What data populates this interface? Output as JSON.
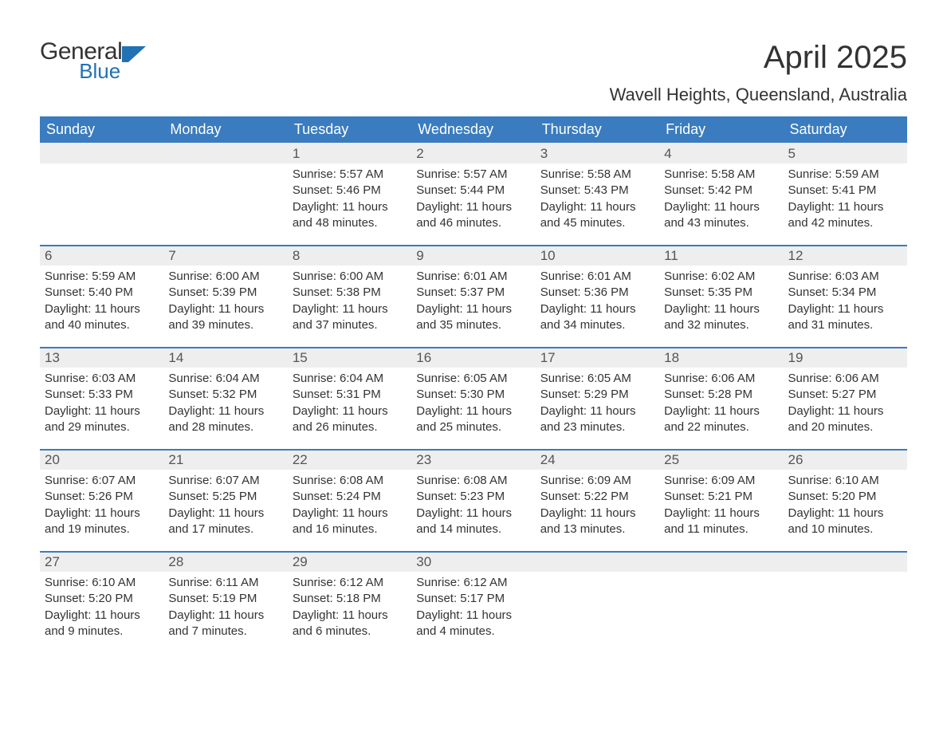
{
  "logo": {
    "word1": "General",
    "word2": "Blue",
    "color_dark": "#333333",
    "color_blue": "#2171b5",
    "shape_color": "#2171b5"
  },
  "title": "April 2025",
  "subtitle": "Wavell Heights, Queensland, Australia",
  "colors": {
    "header_bg": "#3a7cbf",
    "header_text": "#ffffff",
    "row_stripe": "#eeeeee",
    "row_border": "#3a7cbf",
    "body_text": "#333333",
    "page_bg": "#ffffff"
  },
  "columns": [
    "Sunday",
    "Monday",
    "Tuesday",
    "Wednesday",
    "Thursday",
    "Friday",
    "Saturday"
  ],
  "label_sunrise": "Sunrise: ",
  "label_sunset": "Sunset: ",
  "label_daylight_prefix": "Daylight: ",
  "weeks": [
    [
      {
        "blank": true
      },
      {
        "blank": true
      },
      {
        "n": "1",
        "sr": "5:57 AM",
        "ss": "5:46 PM",
        "dl": "11 hours and 48 minutes."
      },
      {
        "n": "2",
        "sr": "5:57 AM",
        "ss": "5:44 PM",
        "dl": "11 hours and 46 minutes."
      },
      {
        "n": "3",
        "sr": "5:58 AM",
        "ss": "5:43 PM",
        "dl": "11 hours and 45 minutes."
      },
      {
        "n": "4",
        "sr": "5:58 AM",
        "ss": "5:42 PM",
        "dl": "11 hours and 43 minutes."
      },
      {
        "n": "5",
        "sr": "5:59 AM",
        "ss": "5:41 PM",
        "dl": "11 hours and 42 minutes."
      }
    ],
    [
      {
        "n": "6",
        "sr": "5:59 AM",
        "ss": "5:40 PM",
        "dl": "11 hours and 40 minutes."
      },
      {
        "n": "7",
        "sr": "6:00 AM",
        "ss": "5:39 PM",
        "dl": "11 hours and 39 minutes."
      },
      {
        "n": "8",
        "sr": "6:00 AM",
        "ss": "5:38 PM",
        "dl": "11 hours and 37 minutes."
      },
      {
        "n": "9",
        "sr": "6:01 AM",
        "ss": "5:37 PM",
        "dl": "11 hours and 35 minutes."
      },
      {
        "n": "10",
        "sr": "6:01 AM",
        "ss": "5:36 PM",
        "dl": "11 hours and 34 minutes."
      },
      {
        "n": "11",
        "sr": "6:02 AM",
        "ss": "5:35 PM",
        "dl": "11 hours and 32 minutes."
      },
      {
        "n": "12",
        "sr": "6:03 AM",
        "ss": "5:34 PM",
        "dl": "11 hours and 31 minutes."
      }
    ],
    [
      {
        "n": "13",
        "sr": "6:03 AM",
        "ss": "5:33 PM",
        "dl": "11 hours and 29 minutes."
      },
      {
        "n": "14",
        "sr": "6:04 AM",
        "ss": "5:32 PM",
        "dl": "11 hours and 28 minutes."
      },
      {
        "n": "15",
        "sr": "6:04 AM",
        "ss": "5:31 PM",
        "dl": "11 hours and 26 minutes."
      },
      {
        "n": "16",
        "sr": "6:05 AM",
        "ss": "5:30 PM",
        "dl": "11 hours and 25 minutes."
      },
      {
        "n": "17",
        "sr": "6:05 AM",
        "ss": "5:29 PM",
        "dl": "11 hours and 23 minutes."
      },
      {
        "n": "18",
        "sr": "6:06 AM",
        "ss": "5:28 PM",
        "dl": "11 hours and 22 minutes."
      },
      {
        "n": "19",
        "sr": "6:06 AM",
        "ss": "5:27 PM",
        "dl": "11 hours and 20 minutes."
      }
    ],
    [
      {
        "n": "20",
        "sr": "6:07 AM",
        "ss": "5:26 PM",
        "dl": "11 hours and 19 minutes."
      },
      {
        "n": "21",
        "sr": "6:07 AM",
        "ss": "5:25 PM",
        "dl": "11 hours and 17 minutes."
      },
      {
        "n": "22",
        "sr": "6:08 AM",
        "ss": "5:24 PM",
        "dl": "11 hours and 16 minutes."
      },
      {
        "n": "23",
        "sr": "6:08 AM",
        "ss": "5:23 PM",
        "dl": "11 hours and 14 minutes."
      },
      {
        "n": "24",
        "sr": "6:09 AM",
        "ss": "5:22 PM",
        "dl": "11 hours and 13 minutes."
      },
      {
        "n": "25",
        "sr": "6:09 AM",
        "ss": "5:21 PM",
        "dl": "11 hours and 11 minutes."
      },
      {
        "n": "26",
        "sr": "6:10 AM",
        "ss": "5:20 PM",
        "dl": "11 hours and 10 minutes."
      }
    ],
    [
      {
        "n": "27",
        "sr": "6:10 AM",
        "ss": "5:20 PM",
        "dl": "11 hours and 9 minutes."
      },
      {
        "n": "28",
        "sr": "6:11 AM",
        "ss": "5:19 PM",
        "dl": "11 hours and 7 minutes."
      },
      {
        "n": "29",
        "sr": "6:12 AM",
        "ss": "5:18 PM",
        "dl": "11 hours and 6 minutes."
      },
      {
        "n": "30",
        "sr": "6:12 AM",
        "ss": "5:17 PM",
        "dl": "11 hours and 4 minutes."
      },
      {
        "blank": true
      },
      {
        "blank": true
      },
      {
        "blank": true
      }
    ]
  ]
}
